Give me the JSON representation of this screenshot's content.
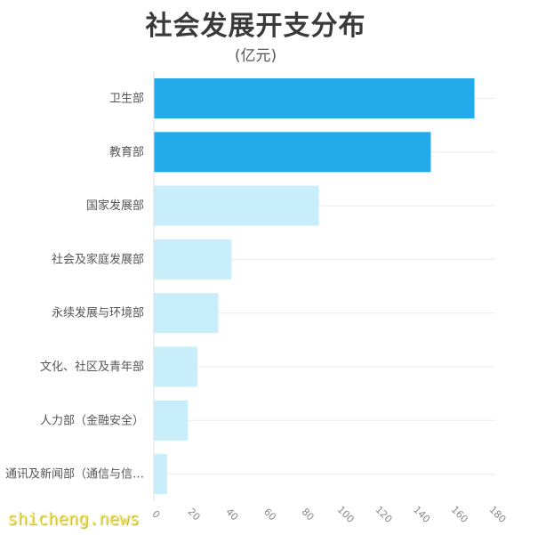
{
  "chart_data": {
    "type": "bar",
    "orientation": "horizontal",
    "title": "社会发展开支分布",
    "subtitle": "(亿元)",
    "categories": [
      "卫生部",
      "教育部",
      "国家发展部",
      "社会及家庭发展部",
      "永续发展与环境部",
      "文化、社区及青年部",
      "人力部（金融安全）",
      "通讯及新闻部（通信与信…"
    ],
    "values": [
      169,
      146,
      87,
      41,
      34,
      23,
      18,
      7
    ],
    "colors": [
      "#22aaeb",
      "#22aaeb",
      "#c8eefc",
      "#c8eefc",
      "#c8eefc",
      "#c8eefc",
      "#c8eefc",
      "#c8eefc"
    ],
    "xlim": [
      0,
      180
    ],
    "xticks": [
      "0",
      "20",
      "40",
      "60",
      "80",
      "100",
      "120",
      "140",
      "160",
      "180"
    ],
    "grid": true
  },
  "watermark": "shicheng.news"
}
